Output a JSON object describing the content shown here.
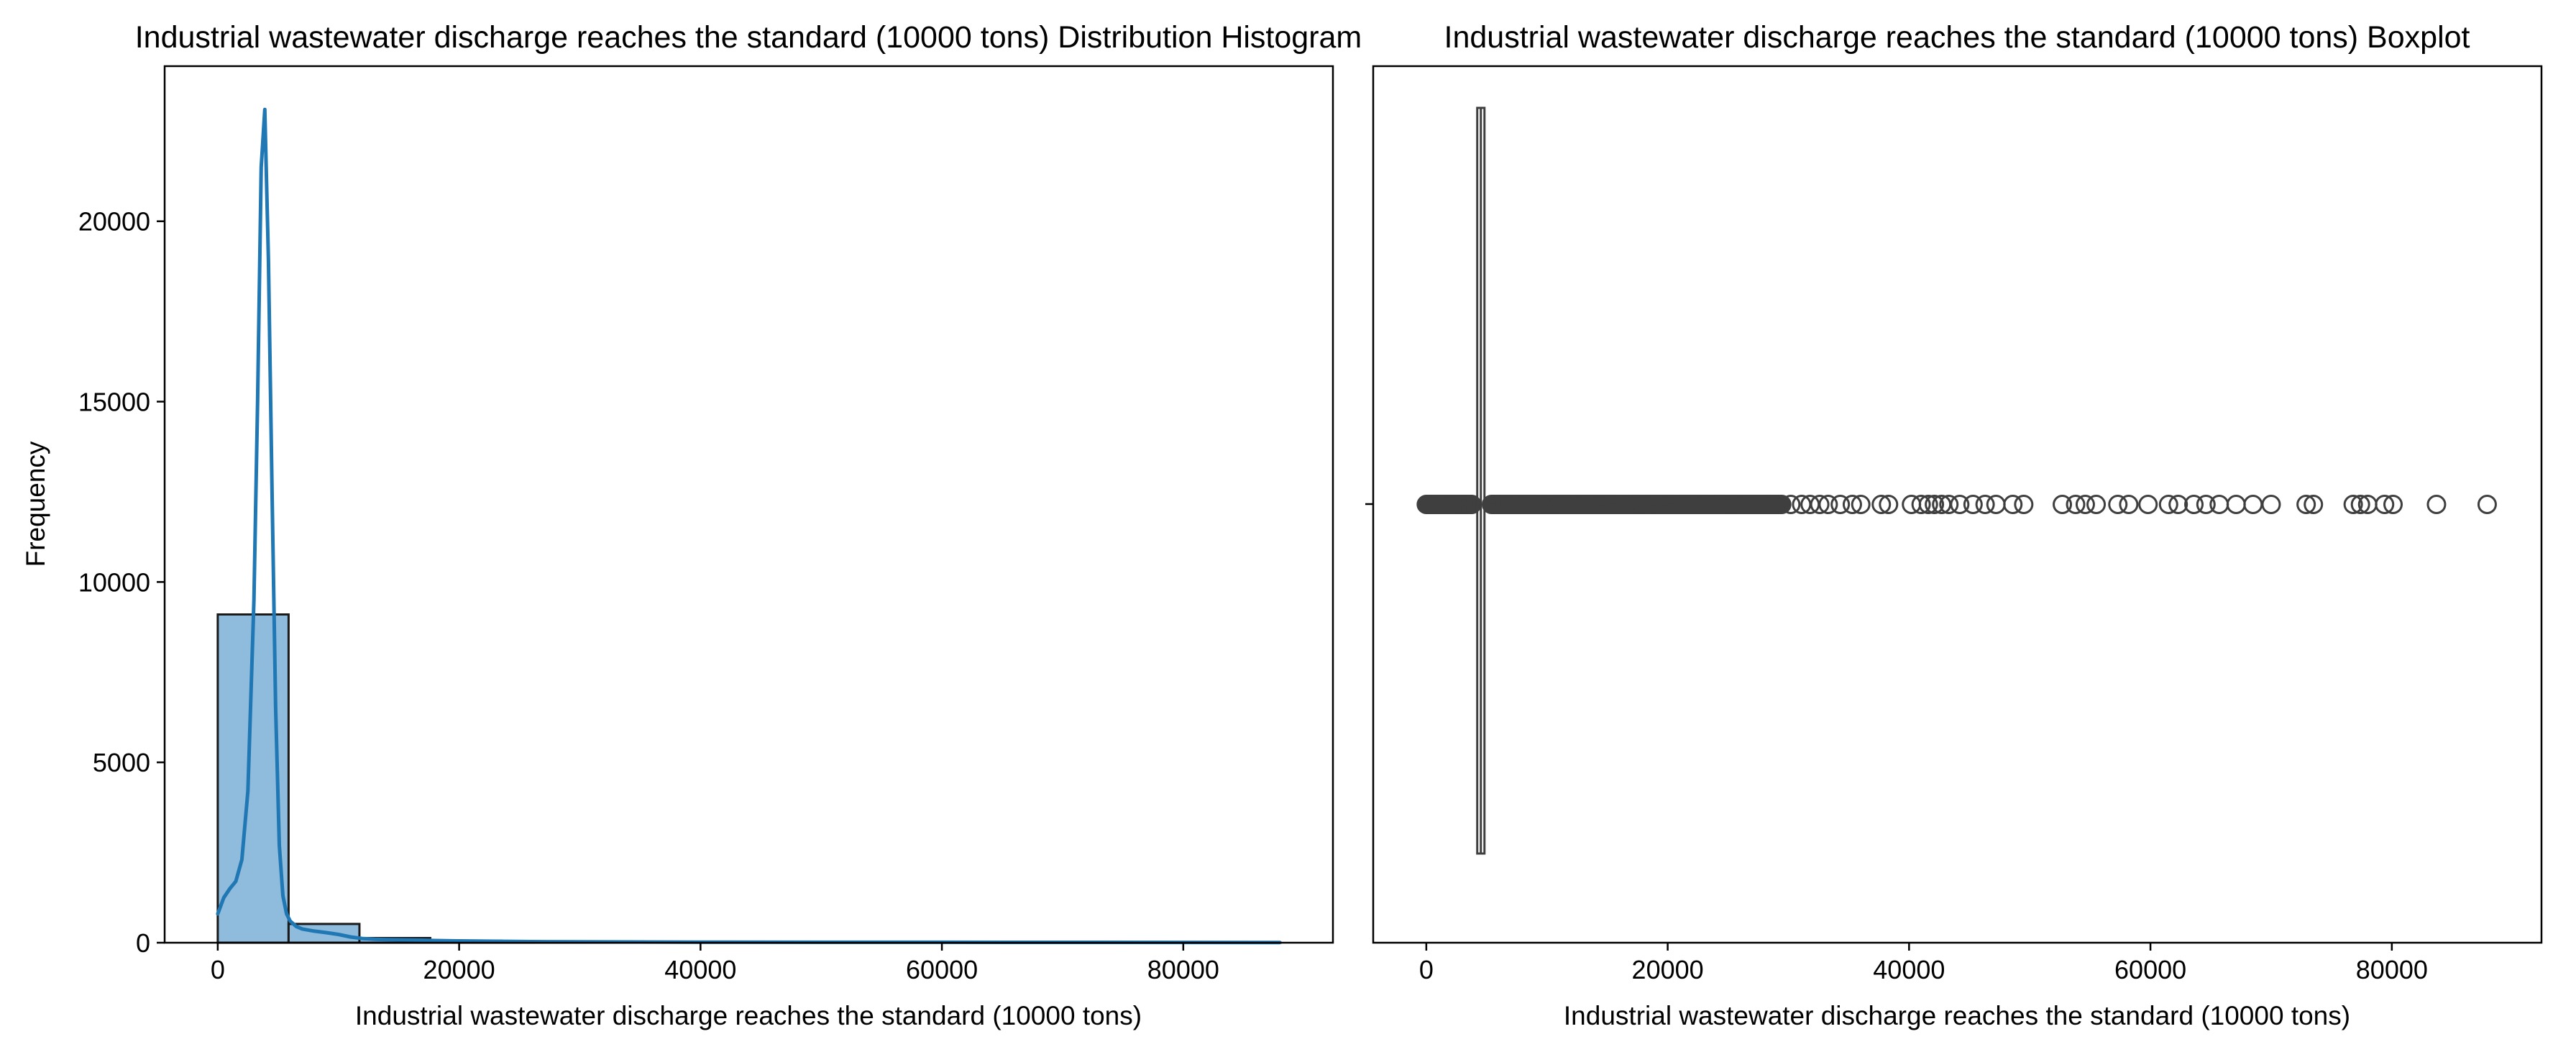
{
  "colors": {
    "hist_fill": "#8fbbdc",
    "hist_edge": "#1a1a1a",
    "kde_line": "#1f77b4",
    "box_line": "#3f3f3f",
    "outlier_edge": "#3f3f3f",
    "axes": "#000000"
  },
  "chart_data": [
    {
      "type": "bar",
      "title": "Industrial wastewater discharge reaches the standard (10000 tons) Distribution Histogram",
      "xlabel": "Industrial wastewater discharge reaches the standard (10000 tons)",
      "ylabel": "Frequency",
      "xlim": [
        -4400,
        92400
      ],
      "ylim": [
        0,
        24300
      ],
      "xticks": [
        0,
        20000,
        40000,
        60000,
        80000
      ],
      "yticks": [
        0,
        5000,
        10000,
        15000,
        20000
      ],
      "grid": false,
      "bins": [
        {
          "x0": 0,
          "x1": 5870,
          "count": 9100
        },
        {
          "x0": 5870,
          "x1": 11740,
          "count": 520
        },
        {
          "x0": 11740,
          "x1": 17610,
          "count": 130
        },
        {
          "x0": 17610,
          "x1": 23480,
          "count": 55
        },
        {
          "x0": 23480,
          "x1": 29350,
          "count": 28
        },
        {
          "x0": 29350,
          "x1": 35220,
          "count": 16
        },
        {
          "x0": 35220,
          "x1": 41090,
          "count": 10
        },
        {
          "x0": 41090,
          "x1": 46960,
          "count": 12
        },
        {
          "x0": 46960,
          "x1": 52830,
          "count": 7
        },
        {
          "x0": 52830,
          "x1": 58700,
          "count": 6
        },
        {
          "x0": 58700,
          "x1": 64570,
          "count": 8
        },
        {
          "x0": 64570,
          "x1": 70440,
          "count": 5
        },
        {
          "x0": 70440,
          "x1": 76310,
          "count": 3
        },
        {
          "x0": 76310,
          "x1": 82180,
          "count": 6
        },
        {
          "x0": 82180,
          "x1": 88050,
          "count": 2
        }
      ],
      "kde": {
        "x": [
          0,
          500,
          1000,
          1500,
          2000,
          2500,
          3000,
          3300,
          3600,
          3900,
          4200,
          4500,
          4800,
          5100,
          5400,
          5700,
          6000,
          6500,
          7000,
          8000,
          9000,
          10000,
          11000,
          12000,
          13000,
          14000,
          15000,
          16000,
          17000,
          18000,
          20000,
          23000,
          26000,
          30000,
          40000,
          50000,
          60000,
          70000,
          80000,
          88000
        ],
        "y": [
          800,
          1250,
          1500,
          1700,
          2300,
          4200,
          9500,
          15000,
          21500,
          23100,
          18900,
          12500,
          6500,
          2700,
          1300,
          800,
          600,
          450,
          380,
          320,
          280,
          230,
          160,
          115,
          95,
          85,
          80,
          75,
          70,
          60,
          50,
          40,
          30,
          25,
          15,
          12,
          12,
          10,
          8,
          5
        ]
      }
    },
    {
      "type": "box",
      "title": "Industrial wastewater discharge reaches the standard (10000 tons) Boxplot",
      "xlabel": "Industrial wastewater discharge reaches the standard (10000 tons)",
      "xlim": [
        -4400,
        92400
      ],
      "xticks": [
        0,
        20000,
        40000,
        60000,
        80000
      ],
      "grid": false,
      "box": {
        "q1": 4220,
        "median": 4520,
        "q3": 4820,
        "whisker_low": 4000,
        "whisker_high": 5000
      },
      "outliers_dense_ranges": [
        [
          0,
          3800
        ],
        [
          5400,
          29500
        ]
      ],
      "outliers": [
        30200,
        31100,
        31800,
        32600,
        33300,
        34300,
        35300,
        36000,
        37700,
        38300,
        40200,
        41000,
        41600,
        42100,
        42700,
        43300,
        44200,
        45300,
        46300,
        47200,
        48600,
        49500,
        52700,
        53800,
        54600,
        55500,
        57300,
        58200,
        59800,
        61500,
        62300,
        63600,
        64600,
        65700,
        67100,
        68500,
        70000,
        72900,
        73500,
        76800,
        77400,
        78000,
        79400,
        80100,
        83700,
        87900
      ]
    }
  ]
}
